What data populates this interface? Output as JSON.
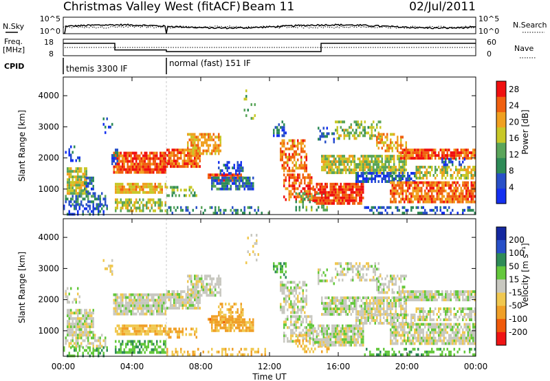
{
  "chart_data": {
    "type": "heatmap",
    "header": {
      "title": "Christmas Valley West (fitACF)",
      "beam": "Beam 11",
      "date": "02/Jul/2011"
    },
    "nsky_panel": {
      "label": "N.Sky",
      "ticks": [
        "10^5",
        "10^0"
      ],
      "right_label": "N.Search",
      "right_ticks": [
        "10^5",
        "10^0"
      ]
    },
    "freq_panel": {
      "label_line1": "Freq.",
      "label_line2": "[MHz]",
      "ticks": [
        "18",
        "8"
      ],
      "right_label": "Nave",
      "right_ticks": [
        "60",
        "0"
      ],
      "freq_steps": [
        {
          "start_hour": 0.0,
          "end_hour": 3.0,
          "mhz": 15.5
        },
        {
          "start_hour": 3.0,
          "end_hour": 6.0,
          "mhz": 11.5
        },
        {
          "start_hour": 6.0,
          "end_hour": 15.0,
          "mhz": 10.5
        },
        {
          "start_hour": 15.0,
          "end_hour": 24.0,
          "mhz": 15.5
        }
      ],
      "freq_range": [
        8,
        18
      ],
      "nave_level": 30,
      "nave_range": [
        0,
        60
      ]
    },
    "cpid_panel": {
      "label": "CPID",
      "segments": [
        {
          "start_hour": 0.0,
          "label": "themis 3300 IF"
        },
        {
          "start_hour": 6.0,
          "label": "normal (fast) 151 IF"
        }
      ]
    },
    "x_axis": {
      "label": "Time UT",
      "range": [
        0,
        24
      ],
      "tick_labels": [
        "00:00",
        "04:00",
        "08:00",
        "12:00",
        "16:00",
        "20:00",
        "00:00"
      ]
    },
    "y_axis": {
      "label": "Slant Range [km]",
      "range": [
        180,
        4600
      ],
      "ticks": [
        1000,
        2000,
        3000,
        4000
      ]
    },
    "power_panel": {
      "colorbar_label": "Power [dB]",
      "colorbar_ticks": [
        4,
        8,
        12,
        16,
        20,
        24,
        28
      ],
      "colorbar_range": [
        0,
        30
      ],
      "colors": [
        "#1430f0",
        "#2850c8",
        "#2e8b57",
        "#5aa55a",
        "#c8c828",
        "#f0a020",
        "#f06010",
        "#f01010"
      ],
      "regions": [
        {
          "t0": 0.0,
          "t1": 2.7,
          "r0": 200,
          "r1": 500,
          "power": 5,
          "density": 0.45
        },
        {
          "t0": 0.1,
          "t1": 2.5,
          "r0": 500,
          "r1": 900,
          "power": 9,
          "density": 0.55
        },
        {
          "t0": 0.2,
          "t1": 1.4,
          "r0": 900,
          "r1": 1700,
          "power": 18,
          "density": 0.8
        },
        {
          "t0": 1.2,
          "t1": 1.8,
          "r0": 900,
          "r1": 1400,
          "power": 7,
          "density": 0.6
        },
        {
          "t0": 0.1,
          "t1": 1.0,
          "r0": 1900,
          "r1": 2400,
          "power": 5,
          "density": 0.35
        },
        {
          "t0": 2.3,
          "t1": 2.9,
          "r0": 2800,
          "r1": 3300,
          "power": 6,
          "density": 0.45
        },
        {
          "t0": 2.9,
          "t1": 6.0,
          "r0": 1500,
          "r1": 2200,
          "power": 27,
          "density": 0.9
        },
        {
          "t0": 2.8,
          "t1": 3.2,
          "r0": 1850,
          "r1": 2300,
          "power": 7,
          "density": 0.6
        },
        {
          "t0": 3.0,
          "t1": 6.0,
          "r0": 900,
          "r1": 1200,
          "power": 21,
          "density": 0.75
        },
        {
          "t0": 3.0,
          "t1": 6.0,
          "r0": 300,
          "r1": 700,
          "power": 17,
          "density": 0.55
        },
        {
          "t0": 6.0,
          "t1": 8.0,
          "r0": 1700,
          "r1": 2300,
          "power": 26,
          "density": 0.85
        },
        {
          "t0": 7.2,
          "t1": 9.2,
          "r0": 2100,
          "r1": 2800,
          "power": 22,
          "density": 0.7
        },
        {
          "t0": 6.0,
          "t1": 7.8,
          "r0": 800,
          "r1": 1100,
          "power": 14,
          "density": 0.55
        },
        {
          "t0": 8.4,
          "t1": 10.5,
          "r0": 1300,
          "r1": 1500,
          "power": 27,
          "density": 0.75
        },
        {
          "t0": 8.6,
          "t1": 11.1,
          "r0": 1000,
          "r1": 1400,
          "power": 8,
          "density": 0.8
        },
        {
          "t0": 9.0,
          "t1": 10.5,
          "r0": 1500,
          "r1": 1900,
          "power": 5,
          "density": 0.6
        },
        {
          "t0": 6.0,
          "t1": 12.0,
          "r0": 200,
          "r1": 450,
          "power": 10,
          "density": 0.35
        },
        {
          "t0": 12.2,
          "t1": 13.0,
          "r0": 2700,
          "r1": 3200,
          "power": 7,
          "density": 0.55
        },
        {
          "t0": 12.6,
          "t1": 14.2,
          "r0": 1600,
          "r1": 2600,
          "power": 24,
          "density": 0.6
        },
        {
          "t0": 12.8,
          "t1": 14.5,
          "r0": 700,
          "r1": 1500,
          "power": 26,
          "density": 0.6
        },
        {
          "t0": 13.5,
          "t1": 15.5,
          "r0": 300,
          "r1": 900,
          "power": 14,
          "density": 0.35
        },
        {
          "t0": 14.5,
          "t1": 17.5,
          "r0": 500,
          "r1": 1200,
          "power": 28,
          "density": 0.85
        },
        {
          "t0": 15.0,
          "t1": 20.0,
          "r0": 1550,
          "r1": 2100,
          "power": 17,
          "density": 0.75
        },
        {
          "t0": 17.0,
          "t1": 20.5,
          "r0": 1200,
          "r1": 1550,
          "power": 6,
          "density": 0.65
        },
        {
          "t0": 15.8,
          "t1": 18.5,
          "r0": 2600,
          "r1": 3200,
          "power": 16,
          "density": 0.45
        },
        {
          "t0": 18.2,
          "t1": 20.0,
          "r0": 2200,
          "r1": 2800,
          "power": 22,
          "density": 0.55
        },
        {
          "t0": 19.5,
          "t1": 24.0,
          "r0": 2000,
          "r1": 2300,
          "power": 26,
          "density": 0.85
        },
        {
          "t0": 20.5,
          "t1": 24.0,
          "r0": 1350,
          "r1": 1750,
          "power": 18,
          "density": 0.6
        },
        {
          "t0": 19.0,
          "t1": 24.0,
          "r0": 600,
          "r1": 1250,
          "power": 25,
          "density": 0.8
        },
        {
          "t0": 17.5,
          "t1": 24.0,
          "r0": 200,
          "r1": 450,
          "power": 7,
          "density": 0.45
        },
        {
          "t0": 22.0,
          "t1": 23.5,
          "r0": 1750,
          "r1": 2000,
          "power": 6,
          "density": 0.4
        },
        {
          "t0": 10.5,
          "t1": 11.5,
          "r0": 3200,
          "r1": 4200,
          "power": 15,
          "density": 0.08
        },
        {
          "t0": 14.8,
          "t1": 15.8,
          "r0": 2500,
          "r1": 3000,
          "power": 6,
          "density": 0.35
        }
      ]
    },
    "velocity_panel": {
      "colorbar_label": "Velocity [m s⁻¹]",
      "colorbar_ticks": [
        200,
        100,
        50,
        15,
        -15,
        -50,
        -100,
        -200
      ],
      "colorbar_range": [
        -250,
        250
      ],
      "colors": [
        "#f01414",
        "#f05a0a",
        "#f0a028",
        "#f0c850",
        "#c8c8c0",
        "#64c83c",
        "#2e8b57",
        "#2850c8",
        "#1428a0"
      ],
      "regions": [
        {
          "t0": 0.0,
          "t1": 2.7,
          "r0": 200,
          "r1": 500,
          "vel": 40,
          "density": 0.45
        },
        {
          "t0": 0.1,
          "t1": 2.5,
          "r0": 500,
          "r1": 900,
          "vel": 0,
          "density": 0.55
        },
        {
          "t0": 0.2,
          "t1": 1.8,
          "r0": 900,
          "r1": 1700,
          "vel": 0,
          "density": 0.8
        },
        {
          "t0": 0.1,
          "t1": 1.0,
          "r0": 1900,
          "r1": 2400,
          "vel": 0,
          "density": 0.35
        },
        {
          "t0": 2.3,
          "t1": 2.9,
          "r0": 2800,
          "r1": 3300,
          "vel": -30,
          "density": 0.45
        },
        {
          "t0": 2.9,
          "t1": 6.0,
          "r0": 1500,
          "r1": 2200,
          "vel": 0,
          "density": 0.9
        },
        {
          "t0": 3.0,
          "t1": 6.0,
          "r0": 900,
          "r1": 1200,
          "vel": -40,
          "density": 0.75
        },
        {
          "t0": 3.0,
          "t1": 6.0,
          "r0": 300,
          "r1": 700,
          "vel": 40,
          "density": 0.55
        },
        {
          "t0": 6.0,
          "t1": 8.0,
          "r0": 1700,
          "r1": 2300,
          "vel": 0,
          "density": 0.85
        },
        {
          "t0": 7.2,
          "t1": 9.2,
          "r0": 2100,
          "r1": 2800,
          "vel": 0,
          "density": 0.7
        },
        {
          "t0": 6.0,
          "t1": 7.8,
          "r0": 800,
          "r1": 1100,
          "vel": -60,
          "density": 0.55
        },
        {
          "t0": 8.4,
          "t1": 10.5,
          "r0": 1300,
          "r1": 1500,
          "vel": -80,
          "density": 0.75
        },
        {
          "t0": 8.6,
          "t1": 11.1,
          "r0": 1000,
          "r1": 1400,
          "vel": -60,
          "density": 0.8
        },
        {
          "t0": 9.0,
          "t1": 10.5,
          "r0": 1500,
          "r1": 1900,
          "vel": -40,
          "density": 0.6
        },
        {
          "t0": 6.0,
          "t1": 12.0,
          "r0": 200,
          "r1": 450,
          "vel": -40,
          "density": 0.35
        },
        {
          "t0": 12.2,
          "t1": 13.0,
          "r0": 2700,
          "r1": 3200,
          "vel": 40,
          "density": 0.55
        },
        {
          "t0": 12.6,
          "t1": 14.2,
          "r0": 1600,
          "r1": 2600,
          "vel": 0,
          "density": 0.6
        },
        {
          "t0": 12.8,
          "t1": 14.5,
          "r0": 700,
          "r1": 1500,
          "vel": 0,
          "density": 0.6
        },
        {
          "t0": 13.5,
          "t1": 15.5,
          "r0": 300,
          "r1": 900,
          "vel": -40,
          "density": 0.35
        },
        {
          "t0": 14.5,
          "t1": 17.5,
          "r0": 500,
          "r1": 1200,
          "vel": 0,
          "density": 0.85
        },
        {
          "t0": 15.0,
          "t1": 20.0,
          "r0": 1550,
          "r1": 2100,
          "vel": 0,
          "density": 0.75
        },
        {
          "t0": 17.0,
          "t1": 20.5,
          "r0": 1200,
          "r1": 1550,
          "vel": 0,
          "density": 0.65
        },
        {
          "t0": 15.8,
          "t1": 18.5,
          "r0": 2600,
          "r1": 3200,
          "vel": 0,
          "density": 0.45
        },
        {
          "t0": 18.2,
          "t1": 20.0,
          "r0": 2200,
          "r1": 2800,
          "vel": 0,
          "density": 0.55
        },
        {
          "t0": 19.5,
          "t1": 24.0,
          "r0": 2000,
          "r1": 2300,
          "vel": 0,
          "density": 0.85
        },
        {
          "t0": 20.5,
          "t1": 24.0,
          "r0": 1350,
          "r1": 1750,
          "vel": 0,
          "density": 0.6
        },
        {
          "t0": 19.0,
          "t1": 24.0,
          "r0": 600,
          "r1": 1250,
          "vel": 0,
          "density": 0.8
        },
        {
          "t0": 17.5,
          "t1": 24.0,
          "r0": 200,
          "r1": 450,
          "vel": 40,
          "density": 0.45
        },
        {
          "t0": 10.5,
          "t1": 11.5,
          "r0": 3200,
          "r1": 4200,
          "vel": 0,
          "density": 0.08
        },
        {
          "t0": 14.8,
          "t1": 15.8,
          "r0": 2500,
          "r1": 3000,
          "vel": 0,
          "density": 0.35
        }
      ]
    }
  }
}
